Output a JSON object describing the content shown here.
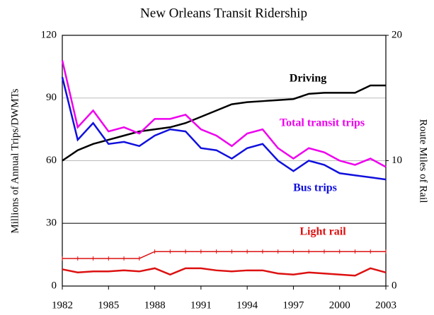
{
  "chart_data": {
    "type": "line",
    "title": "New Orleans Transit Ridership",
    "ylabel": "Millions of Annual Trips/DWMTs",
    "y2label": "Route Miles of Rail",
    "x": [
      1982,
      1983,
      1984,
      1985,
      1986,
      1987,
      1988,
      1989,
      1990,
      1991,
      1992,
      1993,
      1994,
      1995,
      1996,
      1997,
      1998,
      1999,
      2000,
      2001,
      2002,
      2003
    ],
    "xlim": [
      1982,
      2003
    ],
    "xticks": [
      1982,
      1985,
      1988,
      1991,
      1994,
      1997,
      2000,
      2003
    ],
    "ylim": [
      0,
      120
    ],
    "yticks": [
      0,
      30,
      60,
      90,
      120
    ],
    "y2lim": [
      0,
      20
    ],
    "y2ticks": [
      0,
      10,
      20
    ],
    "grid": true,
    "series": [
      {
        "name": "Driving",
        "color": "#000000",
        "values": [
          60,
          65,
          68,
          70,
          72,
          74,
          75,
          76,
          78,
          81,
          84,
          87,
          88,
          88.5,
          89,
          89.5,
          92,
          92.5,
          92.5,
          92.5,
          96,
          96
        ]
      },
      {
        "name": "Total transit trips",
        "color": "#ee00ee",
        "values": [
          108,
          76,
          84,
          74,
          76,
          73,
          80,
          80,
          82,
          75,
          72,
          67,
          73,
          75,
          66,
          61,
          66,
          64,
          60,
          58,
          61,
          57
        ]
      },
      {
        "name": "Bus trips",
        "color": "#1010dd",
        "values": [
          100,
          70,
          78,
          68,
          69,
          67,
          72,
          75,
          74,
          66,
          65,
          61,
          66,
          68,
          60,
          55,
          60,
          58,
          54,
          53,
          52,
          51
        ]
      },
      {
        "name": "Light rail",
        "color": "#dd1111",
        "values": [
          8,
          6.5,
          7,
          7,
          7.5,
          7,
          8.5,
          5.5,
          8.5,
          8.5,
          7.5,
          7,
          7.5,
          7.5,
          6,
          5.5,
          6.5,
          6,
          5.5,
          5,
          8.5,
          6.5
        ]
      },
      {
        "color": "#dd1111",
        "axis": "y2",
        "markers": true,
        "values": [
          2.2,
          2.2,
          2.2,
          2.2,
          2.2,
          2.2,
          2.75,
          2.75,
          2.75,
          2.75,
          2.75,
          2.75,
          2.75,
          2.75,
          2.75,
          2.75,
          2.75,
          2.75,
          2.75,
          2.75,
          2.75,
          2.75
        ]
      }
    ]
  }
}
